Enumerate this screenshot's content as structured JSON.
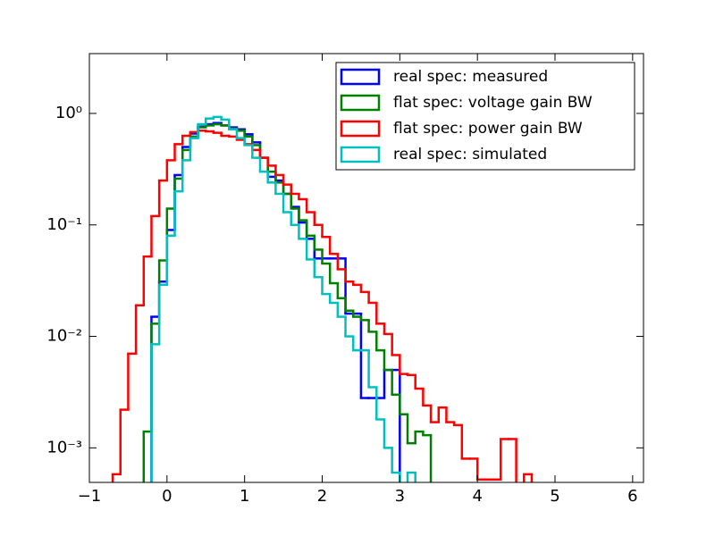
{
  "chart_data": {
    "type": "histogram",
    "log_y": true,
    "legend": "upper right",
    "xlim": [
      -1,
      6.14
    ],
    "ylim": [
      0.00049,
      3.44
    ],
    "xticks": [
      {
        "value": -1,
        "label": "−1"
      },
      0,
      1,
      2,
      3,
      4,
      5,
      6
    ],
    "yticks": [
      {
        "value": 1,
        "label": "10⁰"
      },
      {
        "value": 0.1,
        "label": "10⁻¹"
      },
      {
        "value": 0.01,
        "label": "10⁻²"
      },
      {
        "value": 0.001,
        "label": "10⁻³"
      }
    ],
    "bins": [
      -0.7,
      -0.6,
      -0.5,
      -0.4,
      -0.3,
      -0.2,
      -0.1,
      0,
      0.1,
      0.2,
      0.3,
      0.4,
      0.5,
      0.6,
      0.7,
      0.8,
      0.9,
      1,
      1.1,
      1.2,
      1.3,
      1.4,
      1.5,
      1.6,
      1.7,
      1.8,
      1.9,
      2,
      2.1,
      2.2,
      2.3,
      2.4,
      2.5,
      2.6,
      2.7,
      2.8,
      2.9,
      3,
      3.1,
      3.2,
      3.3,
      3.4,
      3.5,
      3.6,
      3.7,
      3.8,
      3.9,
      4,
      4.1,
      4.2,
      4.3,
      4.4,
      4.5,
      4.6,
      4.7,
      4.8,
      4.9
    ],
    "series": [
      {
        "name": "real spec: measured",
        "color": "#0000ff",
        "values": [
          0,
          0,
          0,
          0,
          0,
          0.015,
          0.031,
          0.09,
          0.28,
          0.5,
          0.66,
          0.76,
          0.8,
          0.82,
          0.78,
          0.75,
          0.72,
          0.65,
          0.55,
          0.4,
          0.27,
          0.25,
          0.19,
          0.145,
          0.105,
          0.075,
          0.05,
          0.05,
          0.05,
          0.05,
          0.016,
          0.016,
          0.0028,
          0.0028,
          0.0028,
          0.005,
          0.005,
          0,
          0,
          0,
          0,
          0,
          0,
          0,
          0,
          0,
          0,
          0,
          0,
          0,
          0,
          0,
          0,
          0,
          0,
          0
        ]
      },
      {
        "name": "flat spec: voltage gain BW",
        "color": "#008000",
        "values": [
          0,
          0,
          0,
          0,
          0.0014,
          0.013,
          0.048,
          0.14,
          0.26,
          0.47,
          0.62,
          0.75,
          0.78,
          0.8,
          0.78,
          0.73,
          0.7,
          0.62,
          0.52,
          0.4,
          0.3,
          0.24,
          0.19,
          0.14,
          0.11,
          0.08,
          0.06,
          0.045,
          0.03,
          0.022,
          0.017,
          0.015,
          0.014,
          0.011,
          0.0075,
          0.005,
          0.003,
          0.002,
          0.0011,
          0.0014,
          0.0013,
          0,
          0,
          0,
          0,
          0,
          0,
          0,
          0,
          0,
          0,
          0,
          0,
          0,
          0,
          0
        ]
      },
      {
        "name": "flat spec: power gain BW",
        "color": "#ff0000",
        "values": [
          0.00058,
          0.0022,
          0.007,
          0.019,
          0.052,
          0.12,
          0.25,
          0.38,
          0.53,
          0.63,
          0.68,
          0.7,
          0.69,
          0.67,
          0.63,
          0.62,
          0.58,
          0.53,
          0.47,
          0.4,
          0.34,
          0.28,
          0.23,
          0.19,
          0.17,
          0.13,
          0.1,
          0.078,
          0.055,
          0.04,
          0.031,
          0.029,
          0.025,
          0.02,
          0.013,
          0.0105,
          0.0068,
          0.0046,
          0.0045,
          0.0034,
          0.0024,
          0.0017,
          0.0023,
          0.0017,
          0.0016,
          0.0008,
          0.0008,
          0.00052,
          0.00052,
          0.00052,
          0.0012,
          0.0012,
          0,
          0.00058,
          0,
          0
        ]
      },
      {
        "name": "real spec: simulated",
        "color": "#00bfbf",
        "values": [
          0,
          0,
          0,
          0,
          0,
          0.0085,
          0.029,
          0.08,
          0.2,
          0.38,
          0.6,
          0.8,
          0.9,
          0.93,
          0.88,
          0.72,
          0.6,
          0.52,
          0.4,
          0.3,
          0.24,
          0.19,
          0.13,
          0.1,
          0.075,
          0.049,
          0.034,
          0.024,
          0.02,
          0.015,
          0.01,
          0.0075,
          0.0075,
          0.0035,
          0.0018,
          0.001,
          0.0006,
          0,
          0.0006,
          0,
          0,
          0,
          0,
          0,
          0,
          0,
          0,
          0,
          0,
          0,
          0,
          0,
          0,
          0,
          0,
          0
        ]
      }
    ]
  }
}
